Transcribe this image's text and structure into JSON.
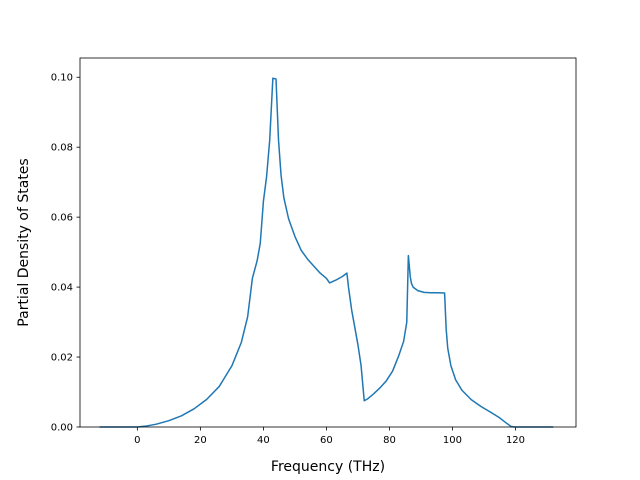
{
  "chart_data": {
    "type": "line",
    "title": "",
    "xlabel": "Frequency (THz)",
    "ylabel": "Partial Density of States",
    "xlim": [
      -18.2,
      139.2
    ],
    "ylim": [
      0.0,
      0.1055
    ],
    "xticks": [
      0,
      20,
      40,
      60,
      80,
      100,
      120
    ],
    "yticks": [
      0.0,
      0.02,
      0.04,
      0.06,
      0.08,
      0.1
    ],
    "xtick_labels": [
      "0",
      "20",
      "40",
      "60",
      "80",
      "100",
      "120"
    ],
    "ytick_labels": [
      "0.00",
      "0.02",
      "0.04",
      "0.06",
      "0.08",
      "0.10"
    ],
    "grid": false,
    "legend": false,
    "series": [
      {
        "color": "#1f77b4",
        "x": [
          -12,
          -6,
          0,
          3,
          6,
          10,
          14,
          18,
          22,
          26,
          30,
          33,
          35,
          36.5,
          38,
          39,
          40,
          41,
          42,
          43,
          44,
          44.8,
          45.2,
          45.6,
          46.5,
          48,
          50,
          52,
          54,
          56,
          58,
          60,
          61,
          63,
          65,
          66.5,
          67,
          68,
          69,
          70,
          71,
          72,
          73,
          75,
          77,
          79,
          81,
          83,
          84.5,
          85.5,
          86,
          86.6,
          87,
          87.5,
          89,
          91,
          93,
          95,
          97.5,
          98,
          98.5,
          99.5,
          101,
          103,
          106,
          109,
          112,
          115,
          117,
          118.5,
          119.5,
          120,
          124,
          128,
          132
        ],
        "y": [
          0,
          0,
          0,
          0.0003,
          0.0008,
          0.0018,
          0.0032,
          0.0052,
          0.0079,
          0.0116,
          0.0175,
          0.0242,
          0.0315,
          0.0425,
          0.0475,
          0.0525,
          0.0645,
          0.0715,
          0.082,
          0.0997,
          0.0995,
          0.082,
          0.077,
          0.072,
          0.0655,
          0.0595,
          0.0545,
          0.0505,
          0.048,
          0.046,
          0.044,
          0.0425,
          0.0412,
          0.042,
          0.043,
          0.044,
          0.04,
          0.0335,
          0.0285,
          0.0235,
          0.0175,
          0.0075,
          0.008,
          0.0095,
          0.0112,
          0.0132,
          0.016,
          0.0205,
          0.0245,
          0.03,
          0.049,
          0.043,
          0.041,
          0.04,
          0.039,
          0.0385,
          0.0384,
          0.0384,
          0.0383,
          0.028,
          0.0225,
          0.0175,
          0.0135,
          0.0105,
          0.0078,
          0.0059,
          0.0043,
          0.0026,
          0.0012,
          0.0002,
          0,
          0,
          0,
          0,
          0
        ]
      }
    ]
  }
}
